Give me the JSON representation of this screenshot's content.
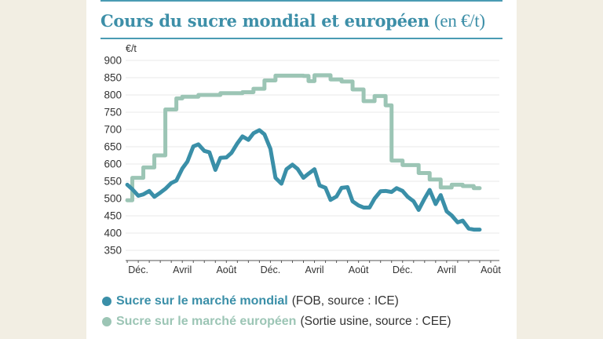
{
  "chart_data": {
    "type": "line",
    "title": "Cours du sucre mondial et européen",
    "title_unit": "(en €/t)",
    "ylabel": "€/t",
    "ylim": [
      330,
      900
    ],
    "yticks": [
      900,
      850,
      800,
      750,
      700,
      650,
      600,
      550,
      500,
      450,
      400,
      350
    ],
    "xlim": [
      "2022-10-27",
      "2025-08-25"
    ],
    "grid": true,
    "legend_placement": "bottom",
    "xticks_months": [
      "2022-11-01",
      "2022-12-01",
      "2023-01-01",
      "2023-02-01",
      "2023-03-01",
      "2023-04-01",
      "2023-05-01",
      "2023-06-01",
      "2023-07-01",
      "2023-08-01",
      "2023-09-01",
      "2023-10-01",
      "2023-11-01",
      "2023-12-01",
      "2024-01-01",
      "2024-02-01",
      "2024-03-01",
      "2024-04-01",
      "2024-05-01",
      "2024-06-01",
      "2024-07-01",
      "2024-08-01",
      "2024-09-01",
      "2024-10-01",
      "2024-11-01",
      "2024-12-01",
      "2025-01-01",
      "2025-02-01",
      "2025-03-01",
      "2025-04-01",
      "2025-05-01",
      "2025-06-01",
      "2025-07-01",
      "2025-08-01"
    ],
    "xtick_labels": [
      {
        "date": "2022-12-01",
        "label": "Déc."
      },
      {
        "date": "2023-04-01",
        "label": "Avril"
      },
      {
        "date": "2023-08-01",
        "label": "Août"
      },
      {
        "date": "2023-12-01",
        "label": "Déc."
      },
      {
        "date": "2024-04-01",
        "label": "Avril"
      },
      {
        "date": "2024-08-01",
        "label": "Août"
      },
      {
        "date": "2024-12-01",
        "label": "Déc."
      },
      {
        "date": "2025-04-01",
        "label": "Avril"
      },
      {
        "date": "2025-08-01",
        "label": "Août"
      }
    ],
    "x": [
      "2022-11-01",
      "2022-11-15",
      "2022-12-01",
      "2022-12-15",
      "2023-01-01",
      "2023-01-15",
      "2023-02-01",
      "2023-02-15",
      "2023-03-01",
      "2023-03-15",
      "2023-04-01",
      "2023-04-15",
      "2023-05-01",
      "2023-05-15",
      "2023-06-01",
      "2023-06-15",
      "2023-07-01",
      "2023-07-15",
      "2023-08-01",
      "2023-08-15",
      "2023-09-01",
      "2023-09-15",
      "2023-10-01",
      "2023-10-15",
      "2023-11-01",
      "2023-11-15",
      "2023-12-01",
      "2023-12-15",
      "2024-01-01",
      "2024-01-15",
      "2024-02-01",
      "2024-02-15",
      "2024-03-01",
      "2024-03-15",
      "2024-04-01",
      "2024-04-15",
      "2024-05-01",
      "2024-05-15",
      "2024-06-01",
      "2024-06-15",
      "2024-07-01",
      "2024-07-15",
      "2024-08-01",
      "2024-08-15",
      "2024-09-01",
      "2024-09-15",
      "2024-10-01",
      "2024-10-15",
      "2024-11-01",
      "2024-11-15",
      "2024-12-01",
      "2024-12-15",
      "2025-01-01",
      "2025-01-15",
      "2025-02-01",
      "2025-02-15",
      "2025-03-01",
      "2025-03-15",
      "2025-04-01",
      "2025-04-15",
      "2025-05-01",
      "2025-05-15",
      "2025-06-01",
      "2025-06-15",
      "2025-07-01"
    ],
    "series": [
      {
        "name": "Sucre sur le marché mondial",
        "note": "(FOB, source : ICE)",
        "color": "#3a8fa8",
        "values": [
          540,
          527,
          508,
          512,
          522,
          505,
          517,
          528,
          545,
          552,
          587,
          607,
          651,
          657,
          638,
          634,
          583,
          618,
          619,
          632,
          660,
          680,
          670,
          689,
          698,
          686,
          644,
          560,
          543,
          585,
          598,
          586,
          560,
          572,
          585,
          538,
          531,
          496,
          506,
          531,
          533,
          492,
          480,
          474,
          474,
          500,
          521,
          522,
          519,
          530,
          522,
          505,
          492,
          467,
          500,
          525,
          484,
          510,
          463,
          451,
          431,
          436,
          413,
          410,
          410
        ]
      },
      {
        "name": "Sucre sur le marché européen",
        "note": "(Sortie usine, source : CEE)",
        "color": "#9cc5b5",
        "values": [
          495,
          560,
          560,
          590,
          590,
          625,
          625,
          758,
          758,
          790,
          795,
          795,
          795,
          800,
          800,
          800,
          800,
          805,
          805,
          805,
          805,
          808,
          808,
          818,
          818,
          842,
          842,
          856,
          856,
          856,
          856,
          856,
          855,
          840,
          857,
          857,
          857,
          845,
          845,
          839,
          839,
          816,
          816,
          782,
          782,
          797,
          797,
          770,
          610,
          610,
          597,
          597,
          597,
          574,
          574,
          555,
          555,
          532,
          532,
          540,
          540,
          536,
          536,
          530,
          530
        ]
      }
    ]
  },
  "colors": {
    "accent": "#3d8fa8",
    "background": "#f2eee3",
    "grid": "#e6e6e6"
  }
}
